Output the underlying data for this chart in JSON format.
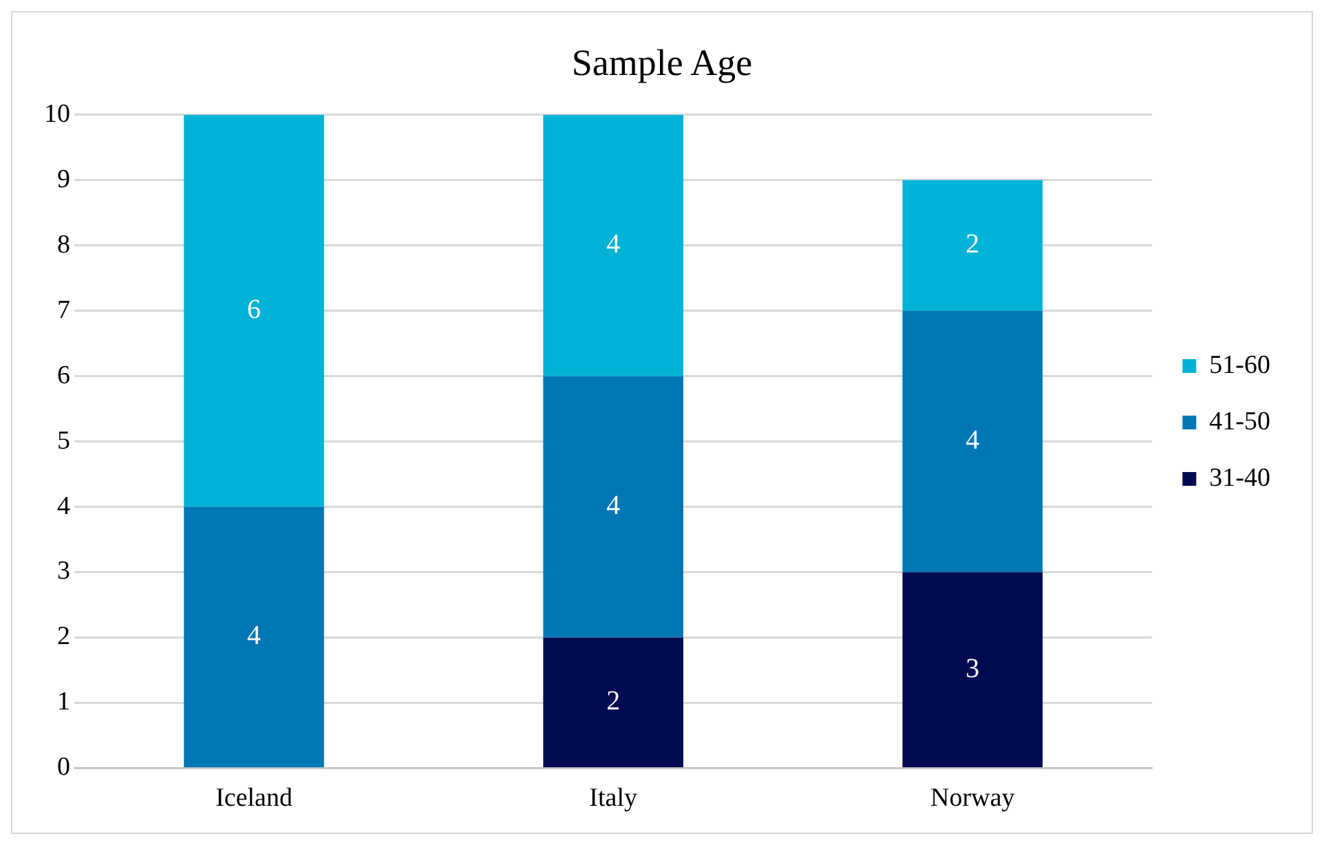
{
  "chart_data": {
    "type": "bar",
    "title": "Sample Age",
    "categories": [
      "Iceland",
      "Italy",
      "Norway"
    ],
    "stacked": true,
    "series": [
      {
        "name": "31-40",
        "color": "#020b52",
        "values": [
          null,
          2,
          3
        ]
      },
      {
        "name": "41-50",
        "color": "#0077b5",
        "values": [
          4,
          4,
          4
        ]
      },
      {
        "name": "51-60",
        "color": "#00b2d6",
        "values": [
          6,
          4,
          2
        ]
      }
    ],
    "ylim": [
      0,
      10
    ],
    "yticks": [
      0,
      1,
      2,
      3,
      4,
      5,
      6,
      7,
      8,
      9,
      10
    ],
    "grid": "y",
    "legend": "right",
    "data_labels": true
  }
}
